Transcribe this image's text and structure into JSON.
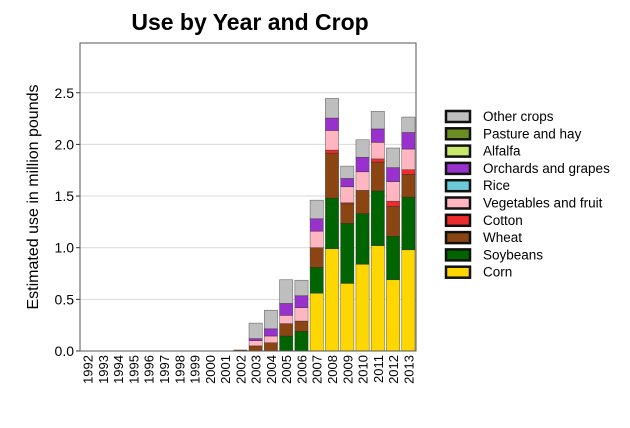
{
  "chart_data": {
    "type": "bar",
    "stacked": true,
    "title": "Use by Year and Crop",
    "xlabel": "",
    "ylabel": "Estimated use in million pounds",
    "ylim": [
      0,
      3.0
    ],
    "yticks": [
      "0.0",
      "0.5",
      "1.0",
      "1.5",
      "2.0",
      "2.5"
    ],
    "grid": true,
    "legend_position": "right",
    "categories": [
      "1992",
      "1993",
      "1994",
      "1995",
      "1996",
      "1997",
      "1998",
      "1999",
      "2000",
      "2001",
      "2002",
      "2003",
      "2004",
      "2005",
      "2006",
      "2007",
      "2008",
      "2009",
      "2010",
      "2011",
      "2012",
      "2013"
    ],
    "series": [
      {
        "name": "Corn",
        "color": "#FFD700",
        "values": [
          0,
          0,
          0,
          0,
          0,
          0,
          0,
          0,
          0,
          0,
          0,
          0,
          0,
          0,
          0,
          0.56,
          0.99,
          0.655,
          0.84,
          1.02,
          0.69,
          0.98
        ]
      },
      {
        "name": "Soybeans",
        "color": "#006400",
        "values": [
          0,
          0,
          0,
          0,
          0,
          0,
          0,
          0,
          0,
          0,
          0,
          0,
          0,
          0.145,
          0.19,
          0.25,
          0.49,
          0.58,
          0.49,
          0.53,
          0.42,
          0.51
        ]
      },
      {
        "name": "Wheat",
        "color": "#8B4513",
        "values": [
          0,
          0,
          0,
          0,
          0,
          0,
          0,
          0,
          0,
          0,
          0.01,
          0.05,
          0.08,
          0.12,
          0.1,
          0.19,
          0.435,
          0.19,
          0.225,
          0.28,
          0.29,
          0.22
        ]
      },
      {
        "name": "Cotton",
        "color": "#EE2C2C",
        "values": [
          0,
          0,
          0,
          0,
          0,
          0,
          0,
          0,
          0,
          0,
          0,
          0,
          0,
          0,
          0,
          0,
          0.03,
          0.01,
          0,
          0.03,
          0.05,
          0.045
        ]
      },
      {
        "name": "Vegetables and fruit",
        "color": "#FFB6C1",
        "values": [
          0,
          0,
          0,
          0,
          0,
          0,
          0,
          0,
          0,
          0,
          0,
          0.05,
          0.065,
          0.08,
          0.13,
          0.16,
          0.19,
          0.155,
          0.18,
          0.16,
          0.19,
          0.2
        ]
      },
      {
        "name": "Rice",
        "color": "#6CC9D8",
        "values": [
          0,
          0,
          0,
          0,
          0,
          0,
          0,
          0,
          0,
          0,
          0,
          0,
          0,
          0,
          0,
          0,
          0,
          0,
          0,
          0,
          0,
          0
        ]
      },
      {
        "name": "Orchards and grapes",
        "color": "#9932CC",
        "values": [
          0,
          0,
          0,
          0,
          0,
          0,
          0,
          0,
          0,
          0,
          0,
          0.02,
          0.07,
          0.115,
          0.115,
          0.12,
          0.12,
          0.08,
          0.14,
          0.13,
          0.135,
          0.16
        ]
      },
      {
        "name": "Alfalfa",
        "color": "#C8E86C",
        "values": [
          0,
          0,
          0,
          0,
          0,
          0,
          0,
          0,
          0,
          0,
          0,
          0,
          0,
          0,
          0,
          0,
          0,
          0,
          0,
          0,
          0,
          0
        ]
      },
      {
        "name": "Pasture and hay",
        "color": "#6B8E23",
        "values": [
          0,
          0,
          0,
          0,
          0,
          0,
          0,
          0,
          0,
          0,
          0,
          0,
          0,
          0,
          0,
          0,
          0,
          0,
          0,
          0,
          0,
          0
        ]
      },
      {
        "name": "Other crops",
        "color": "#BEBEBE",
        "values": [
          0,
          0,
          0,
          0,
          0,
          0,
          0,
          0,
          0,
          0,
          0,
          0.15,
          0.18,
          0.23,
          0.15,
          0.18,
          0.19,
          0.12,
          0.17,
          0.17,
          0.19,
          0.15
        ]
      }
    ],
    "legend_order": [
      "Other crops",
      "Pasture and hay",
      "Alfalfa",
      "Orchards and grapes",
      "Rice",
      "Vegetables and fruit",
      "Cotton",
      "Wheat",
      "Soybeans",
      "Corn"
    ]
  }
}
